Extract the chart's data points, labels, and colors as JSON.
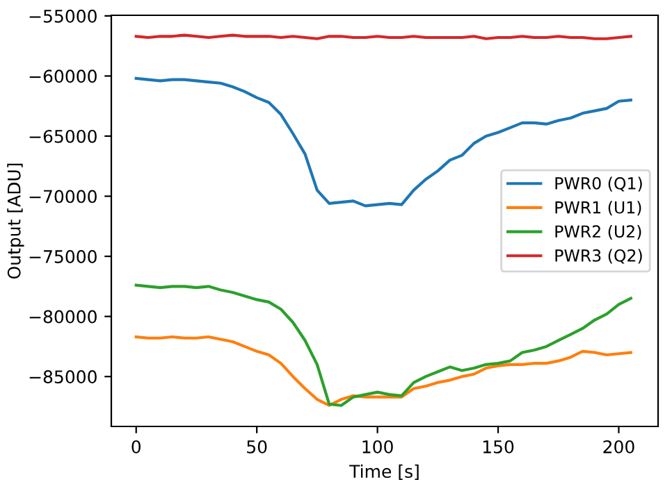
{
  "chart_data": {
    "type": "line",
    "xlabel": "Time [s]",
    "ylabel": "Output [ADU]",
    "x": [
      0,
      5,
      10,
      15,
      20,
      25,
      30,
      35,
      40,
      45,
      50,
      55,
      60,
      65,
      70,
      75,
      80,
      85,
      90,
      95,
      100,
      105,
      110,
      115,
      120,
      125,
      130,
      135,
      140,
      145,
      150,
      155,
      160,
      165,
      170,
      175,
      180,
      185,
      190,
      195,
      200,
      205
    ],
    "series": [
      {
        "name": "PWR0 (Q1)",
        "color": "#1f77b4",
        "values": [
          -60200,
          -60300,
          -60400,
          -60300,
          -60300,
          -60400,
          -60500,
          -60600,
          -60900,
          -61300,
          -61800,
          -62200,
          -63200,
          -64800,
          -66500,
          -69500,
          -70600,
          -70500,
          -70400,
          -70800,
          -70700,
          -70600,
          -70700,
          -69500,
          -68600,
          -67900,
          -67000,
          -66600,
          -65600,
          -65000,
          -64700,
          -64300,
          -63900,
          -63900,
          -64000,
          -63700,
          -63500,
          -63100,
          -62900,
          -62700,
          -62100,
          -62000
        ]
      },
      {
        "name": "PWR1 (U1)",
        "color": "#ff7f0e",
        "values": [
          -81700,
          -81800,
          -81800,
          -81700,
          -81800,
          -81800,
          -81700,
          -81900,
          -82100,
          -82500,
          -82900,
          -83200,
          -83900,
          -85000,
          -86000,
          -86900,
          -87400,
          -86900,
          -86600,
          -86700,
          -86700,
          -86700,
          -86700,
          -86000,
          -85800,
          -85500,
          -85300,
          -85000,
          -84800,
          -84300,
          -84100,
          -84000,
          -84000,
          -83900,
          -83900,
          -83700,
          -83400,
          -82900,
          -83000,
          -83200,
          -83100,
          -83000
        ]
      },
      {
        "name": "PWR2 (U2)",
        "color": "#2ca02c",
        "values": [
          -77400,
          -77500,
          -77600,
          -77500,
          -77500,
          -77600,
          -77500,
          -77800,
          -78000,
          -78300,
          -78600,
          -78800,
          -79400,
          -80500,
          -82000,
          -84000,
          -87300,
          -87400,
          -86700,
          -86500,
          -86300,
          -86500,
          -86600,
          -85500,
          -85000,
          -84600,
          -84200,
          -84500,
          -84300,
          -84000,
          -83900,
          -83700,
          -83000,
          -82800,
          -82500,
          -82000,
          -81500,
          -81000,
          -80300,
          -79800,
          -79000,
          -78500
        ]
      },
      {
        "name": "PWR3 (Q2)",
        "color": "#d62728",
        "values": [
          -56700,
          -56800,
          -56700,
          -56700,
          -56600,
          -56700,
          -56800,
          -56700,
          -56600,
          -56700,
          -56700,
          -56700,
          -56800,
          -56700,
          -56800,
          -56900,
          -56700,
          -56700,
          -56800,
          -56800,
          -56700,
          -56800,
          -56800,
          -56700,
          -56800,
          -56800,
          -56800,
          -56800,
          -56700,
          -56900,
          -56800,
          -56800,
          -56700,
          -56800,
          -56800,
          -56700,
          -56800,
          -56800,
          -56900,
          -56900,
          -56800,
          -56700
        ]
      }
    ],
    "xlim": [
      -10.3,
      216.3
    ],
    "ylim": [
      -89150,
      -54950
    ],
    "xticks": [
      0,
      50,
      100,
      150,
      200
    ],
    "yticks": [
      {
        "value": -85000,
        "label": "−85000"
      },
      {
        "value": -80000,
        "label": "−80000"
      },
      {
        "value": -75000,
        "label": "−75000"
      },
      {
        "value": -70000,
        "label": "−70000"
      },
      {
        "value": -65000,
        "label": "−65000"
      },
      {
        "value": -60000,
        "label": "−60000"
      },
      {
        "value": -55000,
        "label": "−55000"
      }
    ],
    "grid": false,
    "legend": "right",
    "marker": "none",
    "line_style": "solid"
  }
}
